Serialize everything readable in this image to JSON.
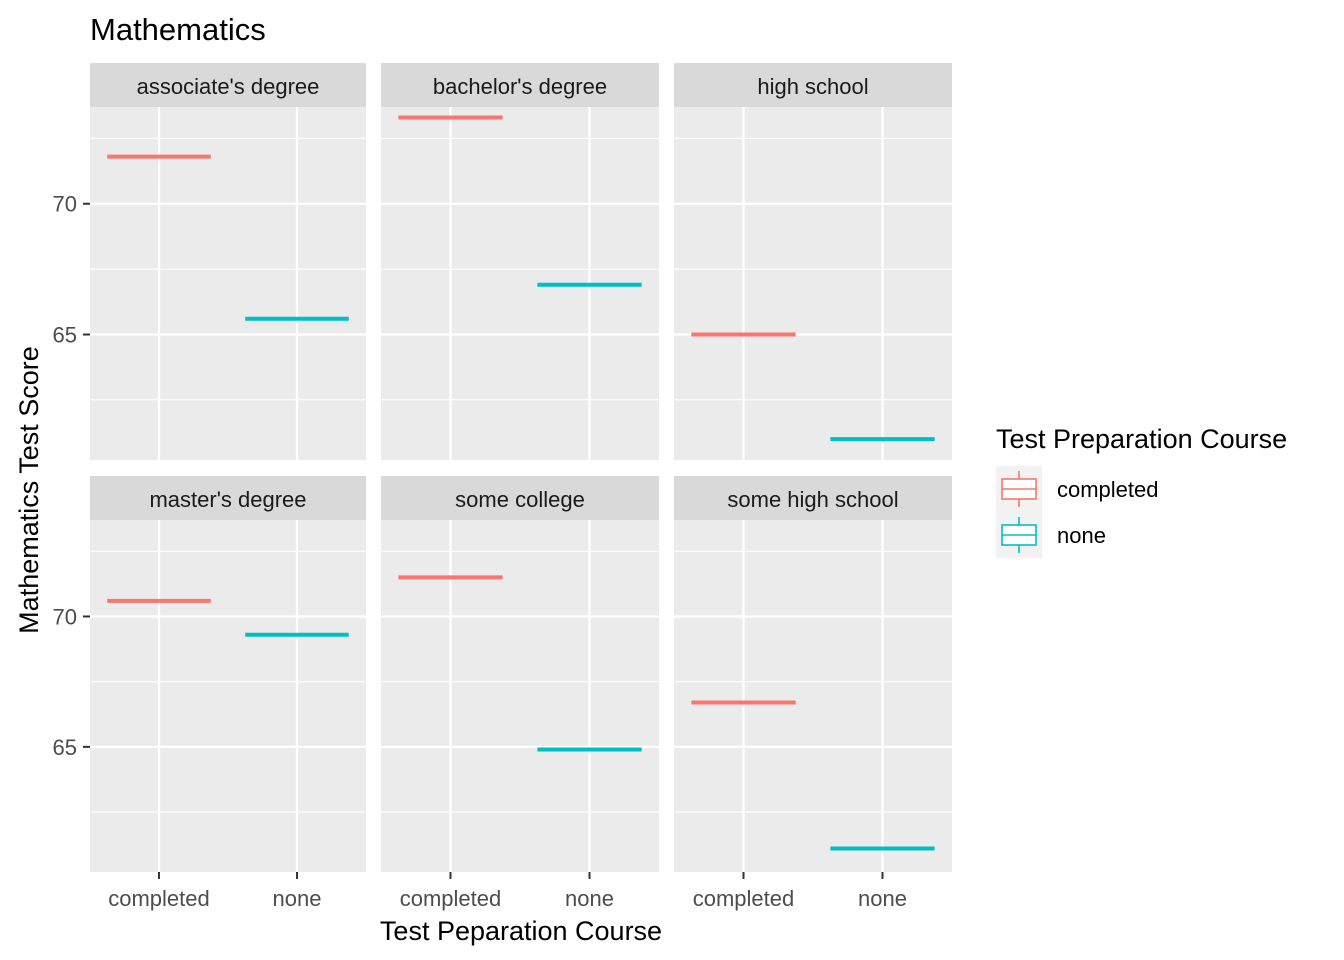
{
  "chart_data": {
    "type": "boxplot",
    "title": "Mathematics",
    "xlabel": "Test Peparation Course",
    "ylabel": "Mathematics Test Score",
    "categories": [
      "completed",
      "none"
    ],
    "ylim": [
      60.2,
      73.7
    ],
    "yticks": [
      65,
      70
    ],
    "grid": true,
    "legend": {
      "title": "Test Preparation Course",
      "placement": "right",
      "items": [
        {
          "label": "completed",
          "color": "#F8766D"
        },
        {
          "label": "none",
          "color": "#00BFC4"
        }
      ]
    },
    "facets": [
      {
        "label": "associate's degree",
        "values": [
          71.8,
          65.6
        ]
      },
      {
        "label": "bachelor's degree",
        "values": [
          73.3,
          66.9
        ]
      },
      {
        "label": "high school",
        "values": [
          65.0,
          61.0
        ]
      },
      {
        "label": "master's degree",
        "values": [
          70.6,
          69.3
        ]
      },
      {
        "label": "some college",
        "values": [
          71.5,
          64.9
        ]
      },
      {
        "label": "some high school",
        "values": [
          66.7,
          61.1
        ]
      }
    ]
  }
}
